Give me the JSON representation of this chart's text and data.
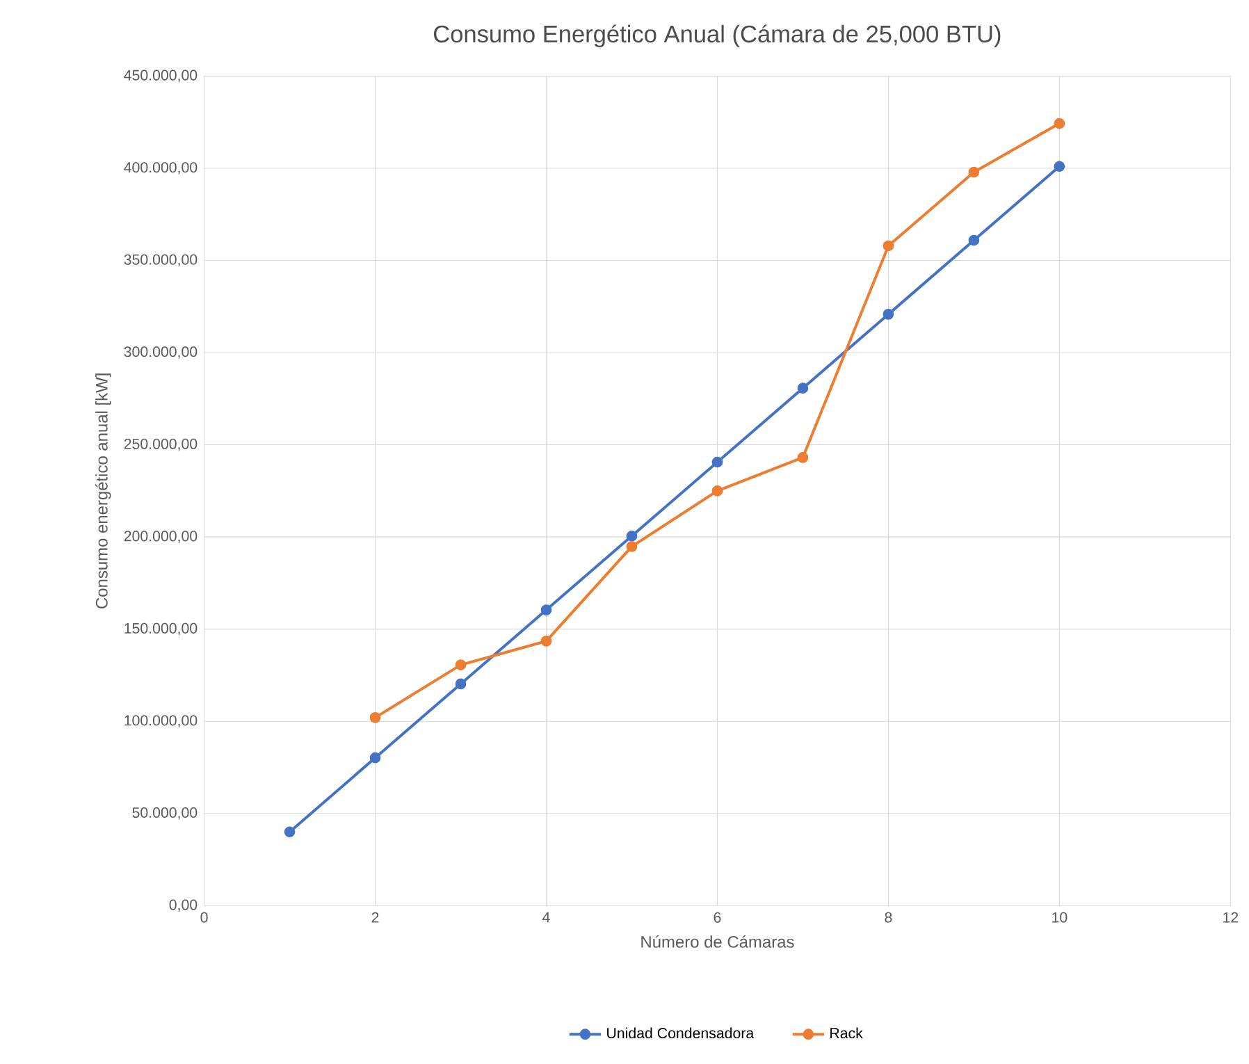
{
  "chart_data": {
    "type": "line",
    "title": "Consumo Energético Anual (Cámara de 25,000 BTU)",
    "xlabel": "Número de Cámaras",
    "ylabel": "Consumo energético anual [kW]",
    "x": [
      1,
      2,
      3,
      4,
      5,
      6,
      7,
      8,
      9,
      10
    ],
    "series": [
      {
        "name": "Unidad Condensadora",
        "color": "#4472c4",
        "values": [
          40000,
          80200,
          120300,
          160400,
          200500,
          240600,
          280700,
          320800,
          360900,
          401000
        ]
      },
      {
        "name": "Rack",
        "color": "#ed7d31",
        "values": [
          null,
          102000,
          130600,
          143500,
          194800,
          225000,
          243100,
          357900,
          397900,
          424300
        ]
      }
    ],
    "xlim": [
      0,
      12
    ],
    "xticks": [
      0,
      2,
      4,
      6,
      8,
      10,
      12
    ],
    "ylim": [
      0,
      450000
    ],
    "yticks": [
      {
        "value": 0,
        "label": "0,00"
      },
      {
        "value": 50000,
        "label": "50.000,00"
      },
      {
        "value": 100000,
        "label": "100.000,00"
      },
      {
        "value": 150000,
        "label": "150.000,00"
      },
      {
        "value": 200000,
        "label": "200.000,00"
      },
      {
        "value": 250000,
        "label": "250.000,00"
      },
      {
        "value": 300000,
        "label": "300.000,00"
      },
      {
        "value": 350000,
        "label": "350.000,00"
      },
      {
        "value": 400000,
        "label": "400.000,00"
      },
      {
        "value": 450000,
        "label": "450.000,00"
      }
    ],
    "grid": true,
    "legend": "bottom",
    "marker": "circle",
    "line_style": "solid"
  }
}
